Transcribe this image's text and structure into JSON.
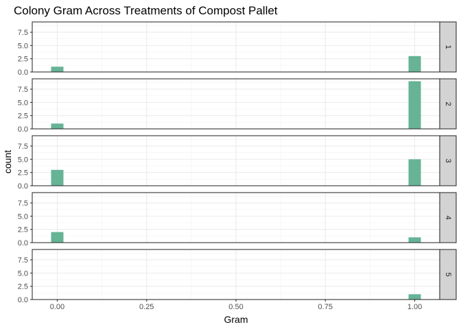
{
  "chart_data": {
    "type": "bar",
    "title": "Colony Gram Across Treatments of Compost Pallet",
    "xlabel": "Gram",
    "ylabel": "count",
    "xlim": [
      -0.07,
      1.07
    ],
    "ylim": [
      0,
      9.45
    ],
    "x_ticks": [
      "0.00",
      "0.25",
      "0.50",
      "0.75",
      "1.00"
    ],
    "y_ticks": [
      "0.0",
      "2.5",
      "5.0",
      "7.5"
    ],
    "bar_color": "#66b395",
    "strip_fill": "#d3d3d3",
    "grid": true,
    "facets": [
      {
        "label": "1",
        "bars": [
          {
            "x": 0,
            "count": 1
          },
          {
            "x": 1,
            "count": 3
          }
        ]
      },
      {
        "label": "2",
        "bars": [
          {
            "x": 0,
            "count": 1
          },
          {
            "x": 1,
            "count": 9
          }
        ]
      },
      {
        "label": "3",
        "bars": [
          {
            "x": 0,
            "count": 3
          },
          {
            "x": 1,
            "count": 5
          }
        ]
      },
      {
        "label": "4",
        "bars": [
          {
            "x": 0,
            "count": 2
          },
          {
            "x": 1,
            "count": 1
          }
        ]
      },
      {
        "label": "5",
        "bars": [
          {
            "x": 0,
            "count": 0
          },
          {
            "x": 1,
            "count": 1
          }
        ]
      }
    ]
  }
}
